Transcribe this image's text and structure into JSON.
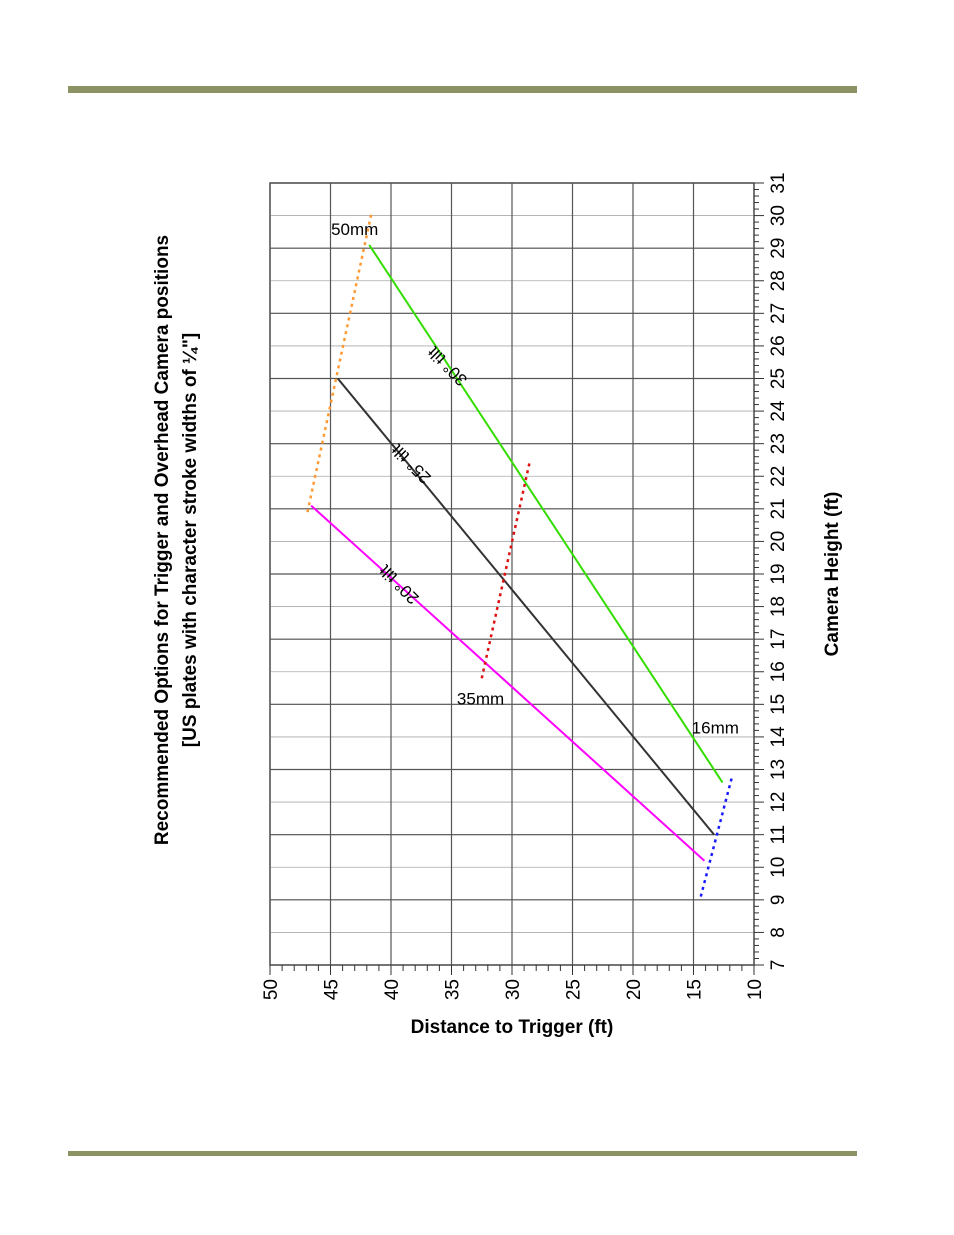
{
  "colors": {
    "rule": "#8c9264",
    "grid": "#555555",
    "minor_grid": "#aaaaaa"
  },
  "chart_data": {
    "type": "line",
    "orientation": "rotated-90",
    "title": "Recommended Options for Trigger and Overhead Camera positions",
    "subtitle": "[US plates with character stroke widths of ¼\"]",
    "xlabel": "Camera Height (ft)",
    "ylabel": "Distance to Trigger (ft)",
    "xlim": [
      7,
      31
    ],
    "ylim": [
      10,
      50
    ],
    "x_ticks": [
      7,
      8,
      9,
      10,
      11,
      12,
      13,
      14,
      15,
      16,
      17,
      18,
      19,
      20,
      21,
      22,
      23,
      24,
      25,
      26,
      27,
      28,
      29,
      30,
      31
    ],
    "y_ticks": [
      50,
      45,
      40,
      35,
      30,
      25,
      20,
      15,
      10
    ],
    "grid": true,
    "series": [
      {
        "name": "20° tilt",
        "color": "#ff00ff",
        "dash": "solid",
        "x": [
          10.2,
          21.1
        ],
        "y": [
          14.1,
          46.6
        ]
      },
      {
        "name": "25° tilt",
        "color": "#333333",
        "dash": "solid",
        "x": [
          11.0,
          25.0
        ],
        "y": [
          13.3,
          44.4
        ]
      },
      {
        "name": "30° tilt",
        "color": "#33dd00",
        "dash": "solid",
        "x": [
          12.6,
          29.1
        ],
        "y": [
          12.6,
          41.8
        ]
      },
      {
        "name": "16mm",
        "color": "#1a1aff",
        "dash": "dotted",
        "x": [
          9.1,
          12.8
        ],
        "y": [
          14.4,
          11.8
        ]
      },
      {
        "name": "35mm",
        "color": "#dd1111",
        "dash": "dotted",
        "x": [
          15.8,
          22.5
        ],
        "y": [
          32.5,
          28.5
        ]
      },
      {
        "name": "50mm",
        "color": "#ff9933",
        "dash": "dotted",
        "x": [
          20.9,
          30.1
        ],
        "y": [
          46.9,
          41.6
        ]
      }
    ],
    "annotations": [
      {
        "text": "20° tilt",
        "x": 18.8,
        "y": 39.0,
        "angle": -45
      },
      {
        "text": "25° tilt",
        "x": 22.5,
        "y": 38.0,
        "angle": -45
      },
      {
        "text": "30° tilt",
        "x": 25.5,
        "y": 35.0,
        "angle": -45
      },
      {
        "text": "16mm",
        "x": 14.1,
        "y": 13.2,
        "angle": 90
      },
      {
        "text": "35mm",
        "x": 15.0,
        "y": 32.6,
        "angle": 90
      },
      {
        "text": "50mm",
        "x": 29.4,
        "y": 43.0,
        "angle": 90
      }
    ]
  }
}
